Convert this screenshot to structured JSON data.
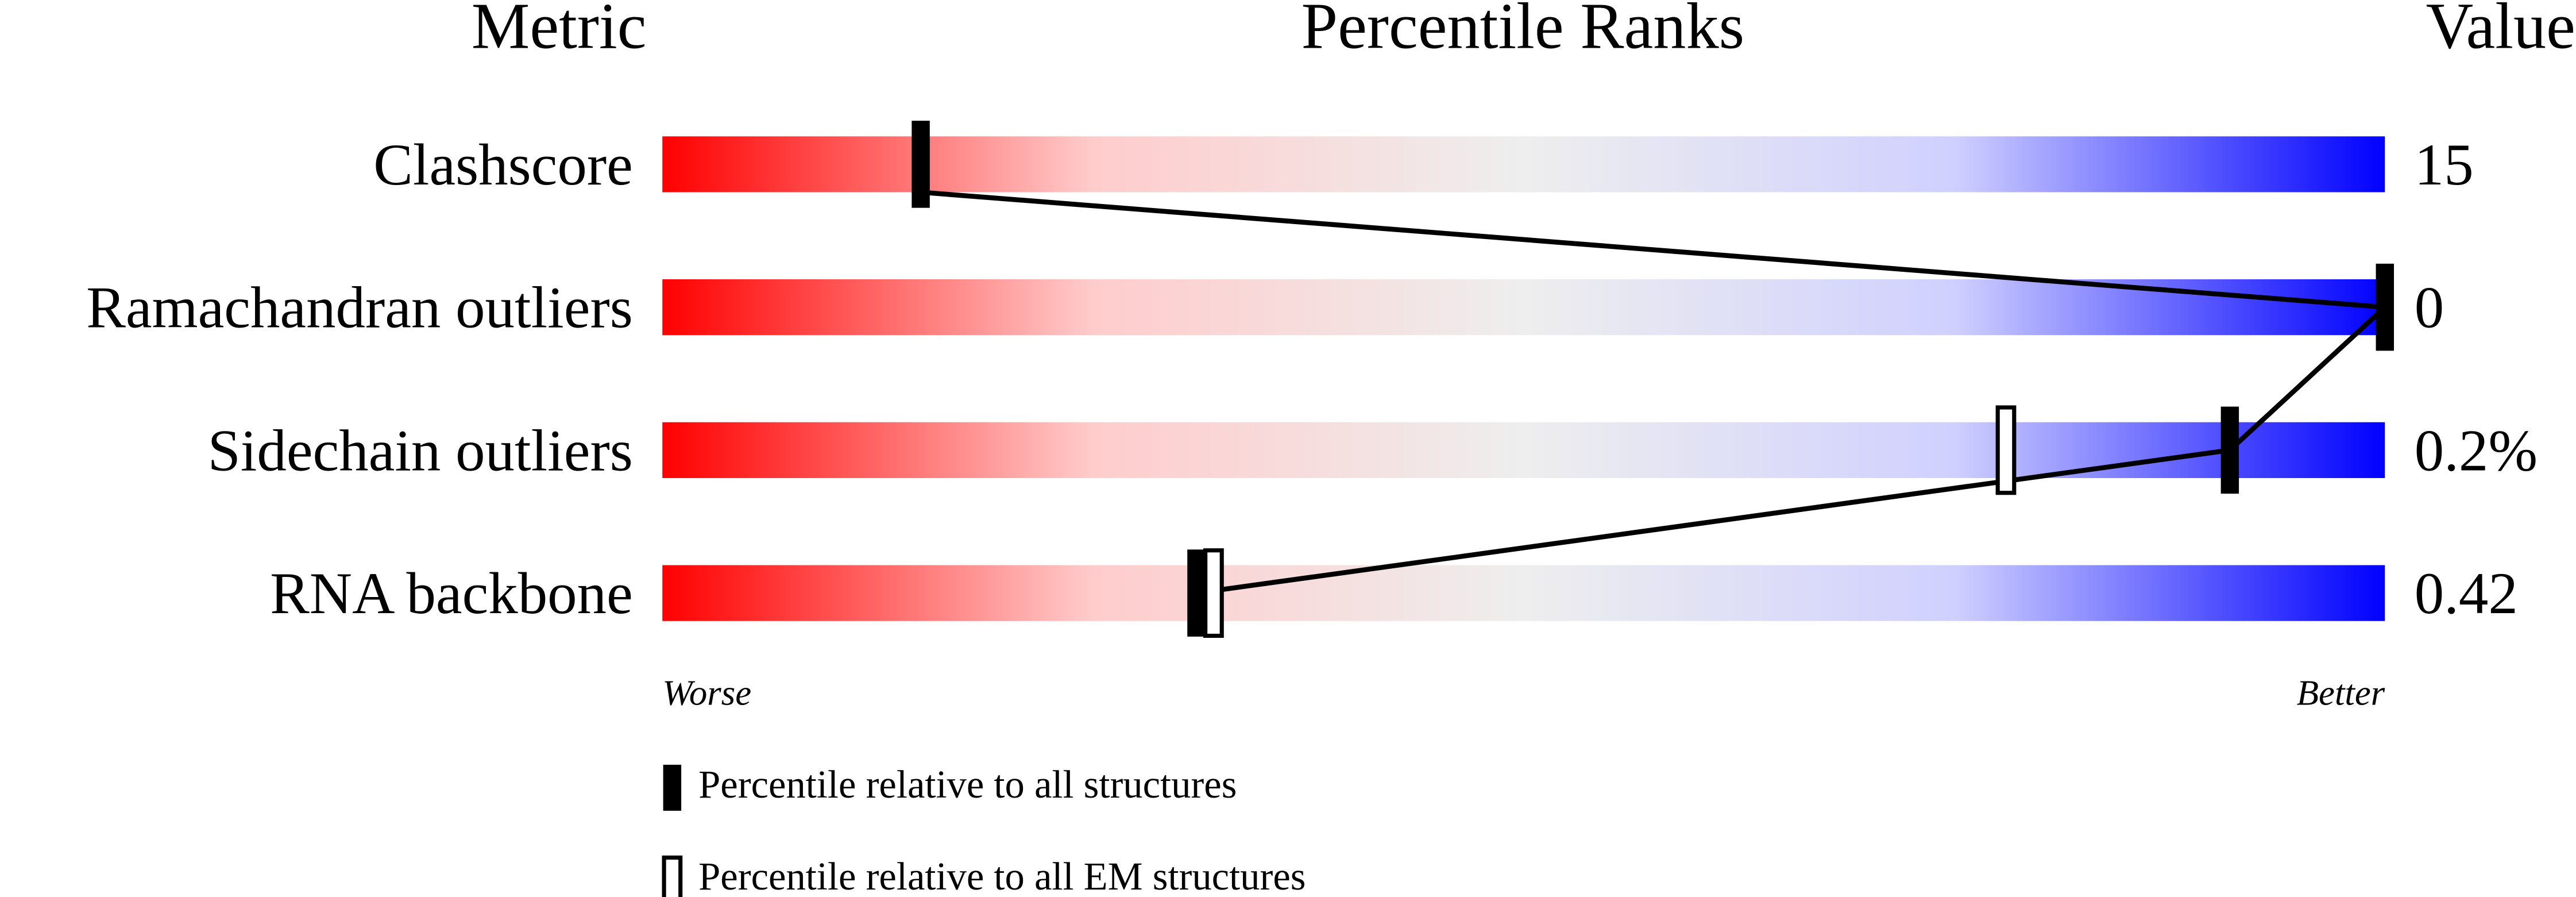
{
  "chart_data": {
    "type": "slider",
    "headers": {
      "metric": "Metric",
      "ranks": "Percentile Ranks",
      "value": "Value"
    },
    "categories": [
      "Clashscore",
      "Ramachandran outliers",
      "Sidechain outliers",
      "RNA backbone"
    ],
    "value_labels": [
      "15",
      "0",
      "0.2%",
      "0.42"
    ],
    "series": [
      {
        "name": "Percentile relative to all structures",
        "color": "#000000",
        "values": [
          15,
          100,
          91,
          31
        ]
      },
      {
        "name": "Percentile relative to all EM structures",
        "color": "#ffffff",
        "values": [
          null,
          null,
          78,
          32
        ]
      }
    ],
    "xlim": [
      0,
      100
    ],
    "worse_label": "Worse",
    "better_label": "Better"
  }
}
